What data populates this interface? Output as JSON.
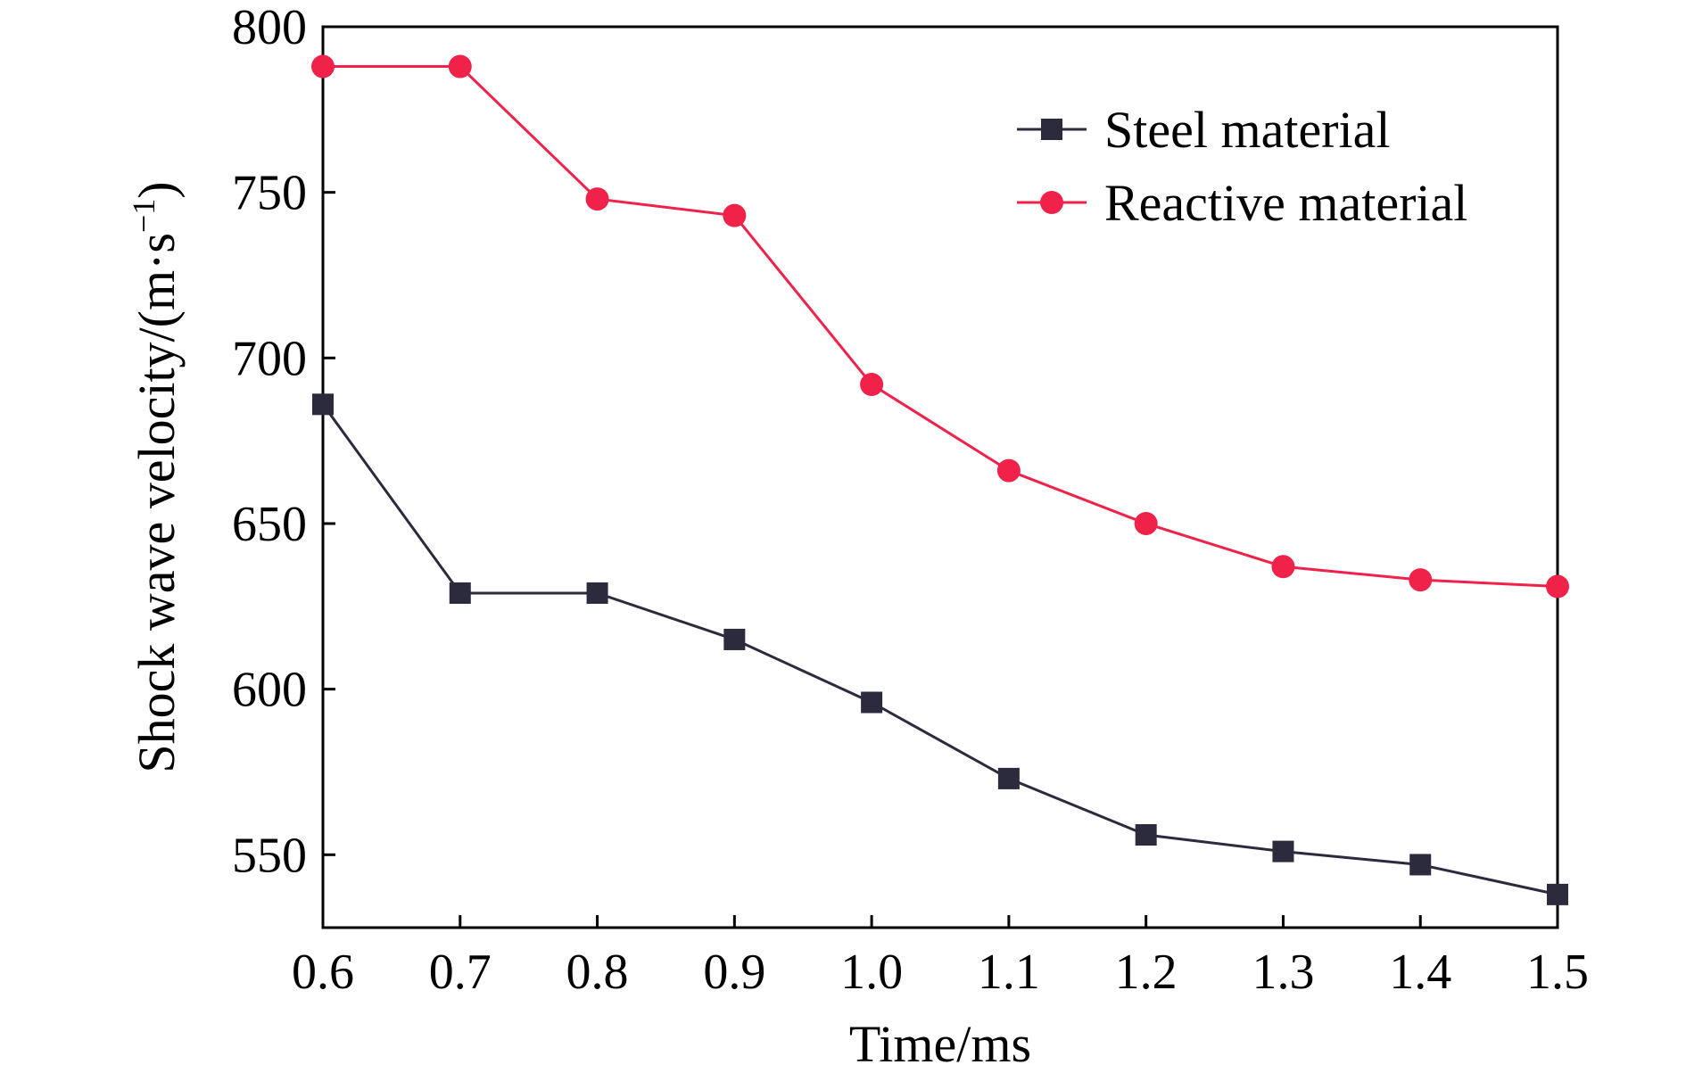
{
  "chart_data": {
    "type": "line",
    "title": "",
    "xlabel": "Time/ms",
    "ylabel": "Shock wave velocity/(m·s",
    "ylabel_superscript": "−1",
    "ylabel_suffix": ")",
    "xlim": [
      0.6,
      1.5
    ],
    "ylim": [
      528,
      800
    ],
    "grid": false,
    "legend_position": "top-right",
    "x": [
      0.6,
      0.7,
      0.8,
      0.9,
      1.0,
      1.1,
      1.2,
      1.3,
      1.4,
      1.5
    ],
    "x_tick_labels": [
      "0.6",
      "0.7",
      "0.8",
      "0.9",
      "1.0",
      "1.1",
      "1.2",
      "1.3",
      "1.4",
      "1.5"
    ],
    "y_ticks": [
      550,
      600,
      650,
      700,
      750,
      800
    ],
    "y_tick_labels": [
      "550",
      "600",
      "650",
      "700",
      "750",
      "800"
    ],
    "series": [
      {
        "name": "Steel material",
        "color": "#2b2b3d",
        "marker": "square",
        "values": [
          686,
          629,
          629,
          615,
          596,
          573,
          556,
          551,
          547,
          538
        ]
      },
      {
        "name": "Reactive material",
        "color": "#f0224a",
        "marker": "circle",
        "values": [
          788,
          788,
          748,
          743,
          692,
          666,
          650,
          637,
          633,
          631
        ]
      }
    ]
  }
}
